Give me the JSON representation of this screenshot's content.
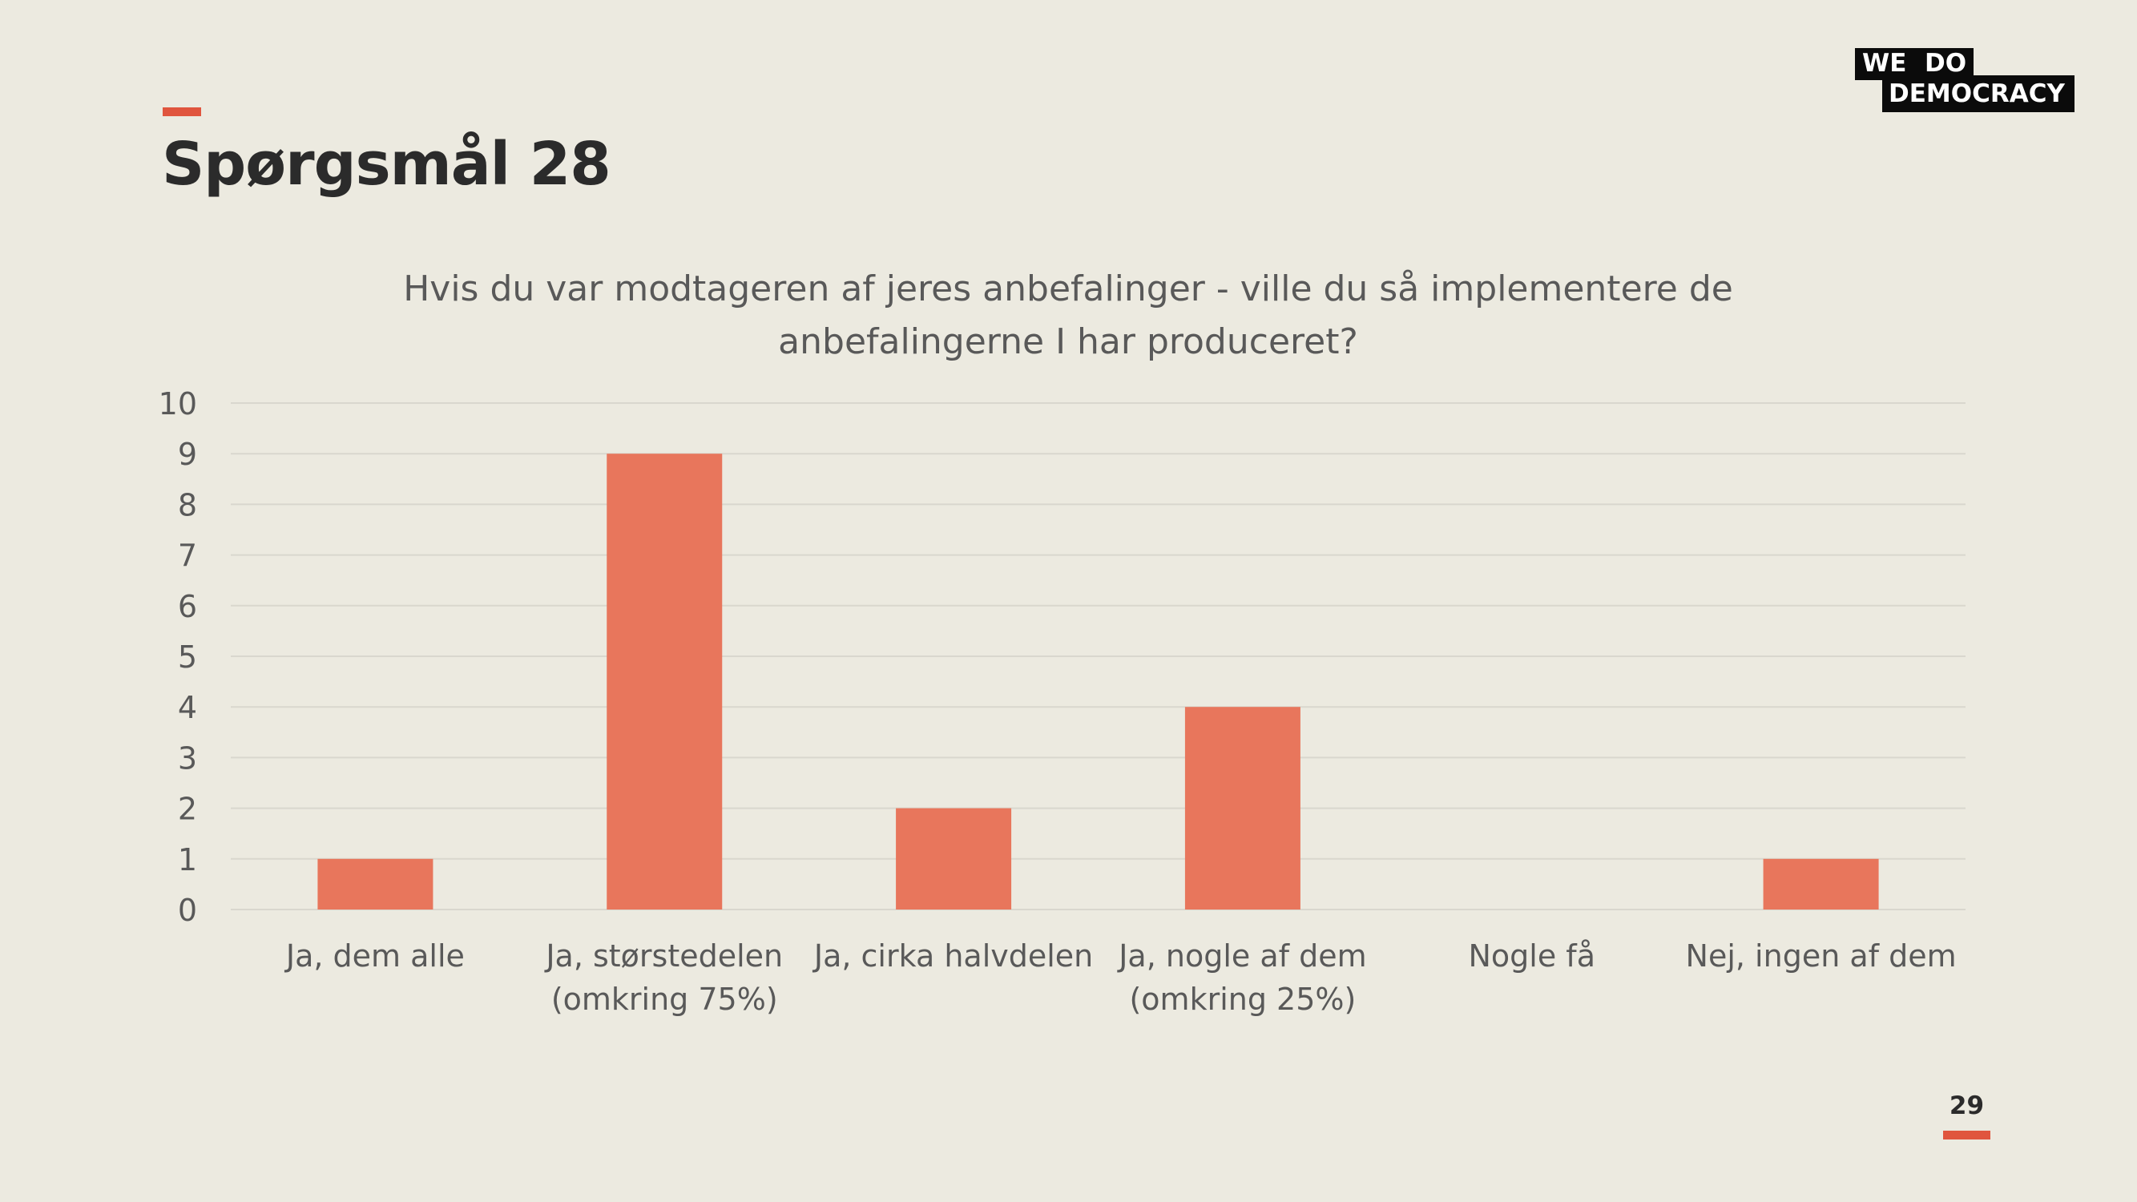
{
  "slide": {
    "title": "Spørgsmål 28",
    "page_number": "29",
    "accent_color": "#E0553E"
  },
  "logo": {
    "line1_left": "WE",
    "line1_right": "DO",
    "line2": "DEMOCRACY"
  },
  "chart_data": {
    "type": "bar",
    "title_lines": [
      "Hvis du var modtageren af jeres anbefalinger - ville du så implementere de",
      "anbefalingerne I har produceret?"
    ],
    "categories": [
      [
        "Ja, dem alle"
      ],
      [
        "Ja, størstedelen",
        "(omkring 75%)"
      ],
      [
        "Ja, cirka halvdelen"
      ],
      [
        "Ja, nogle af dem",
        "(omkring 25%)"
      ],
      [
        "Nogle få"
      ],
      [
        "Nej, ingen af dem"
      ]
    ],
    "values": [
      1,
      9,
      2,
      4,
      0,
      1
    ],
    "ylim": [
      0,
      10
    ],
    "yticks": [
      "0",
      "1",
      "2",
      "3",
      "4",
      "5",
      "6",
      "7",
      "8",
      "9",
      "10"
    ],
    "xlabel": "",
    "ylabel": "",
    "grid": true,
    "legend": "none",
    "bar_color": "#E8765C",
    "grid_color": "#D9D7CE"
  }
}
